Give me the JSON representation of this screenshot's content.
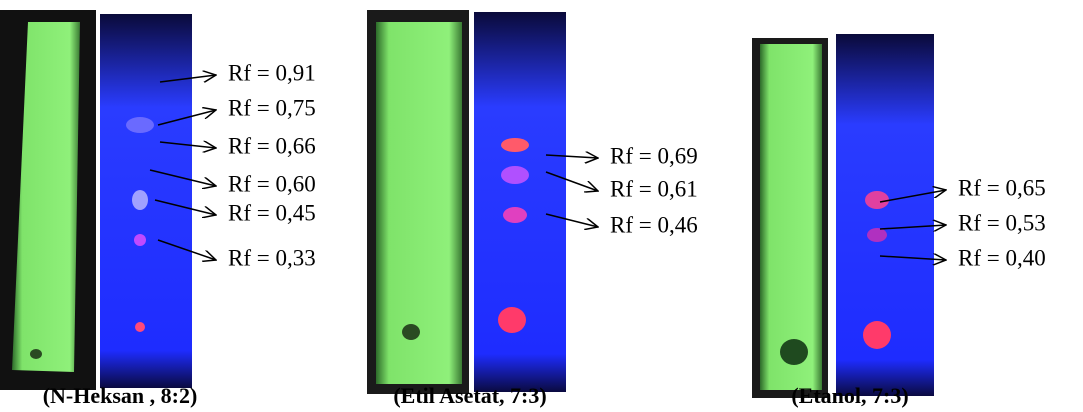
{
  "panels": [
    {
      "caption": "(N-Heksan , 8:2)",
      "labels": [
        "Rf = 0,91",
        "Rf = 0,75",
        "Rf = 0,66",
        "Rf = 0,60",
        "Rf = 0,45",
        "Rf = 0,33"
      ]
    },
    {
      "caption": "(Etil Asetat, 7:3)",
      "labels": [
        "Rf = 0,69",
        "Rf = 0,61",
        "Rf = 0,46"
      ]
    },
    {
      "caption": "(Etanol, 7:3)",
      "labels": [
        "Rf = 0,65",
        "Rf = 0,53",
        "Rf = 0,40"
      ]
    }
  ]
}
